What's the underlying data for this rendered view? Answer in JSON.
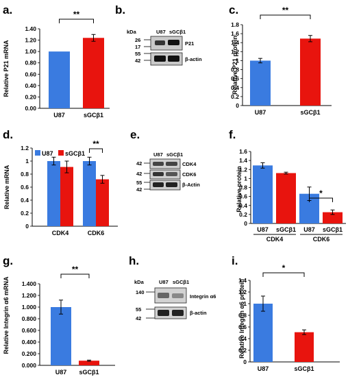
{
  "colors": {
    "blue": "#3a7be0",
    "red": "#e8140e"
  },
  "panels": {
    "a": {
      "label": "a."
    },
    "b": {
      "label": "b."
    },
    "c": {
      "label": "c."
    },
    "d": {
      "label": "d."
    },
    "e": {
      "label": "e."
    },
    "f": {
      "label": "f."
    },
    "g": {
      "label": "g."
    },
    "h": {
      "label": "h."
    },
    "i": {
      "label": "i."
    }
  },
  "chart_data": [
    {
      "id": "a",
      "type": "bar",
      "ylabel": "Relative P21 mRNA",
      "ylim": [
        0,
        1.4
      ],
      "yticks": [
        "0.00",
        "0.20",
        "0.40",
        "0.60",
        "0.80",
        "1.00",
        "1.20",
        "1.40"
      ],
      "categories": [
        "U87",
        "sGCβ1"
      ],
      "values": [
        1.0,
        1.24
      ],
      "errors": [
        0,
        0.06
      ],
      "significance": [
        {
          "label": "**",
          "from": 0,
          "to": 1
        }
      ]
    },
    {
      "id": "c",
      "type": "bar",
      "ylabel": "Relative P21 protein",
      "ylim": [
        0,
        1.8
      ],
      "yticks": [
        "0",
        "0.2",
        "0.4",
        "0.6",
        "0.8",
        "1",
        "1.2",
        "1.4",
        "1.6",
        "1.8"
      ],
      "categories": [
        "U87",
        "sGCβ1"
      ],
      "values": [
        1.0,
        1.49
      ],
      "errors": [
        0.05,
        0.07
      ],
      "significance": [
        {
          "label": "**",
          "from": 0,
          "to": 1
        }
      ]
    },
    {
      "id": "d",
      "type": "bar",
      "ylabel": "Relative mRNA",
      "ylim": [
        0,
        1.2
      ],
      "yticks": [
        "0",
        "0.2",
        "0.4",
        "0.6",
        "0.8",
        "1",
        "1.2"
      ],
      "categories": [
        "CDK4",
        "CDK6"
      ],
      "legend": [
        "U87",
        "sGCβ1"
      ],
      "series": [
        {
          "name": "U87",
          "values": [
            1.0,
            1.0
          ],
          "errors": [
            0.06,
            0.06
          ]
        },
        {
          "name": "sGCβ1",
          "values": [
            0.91,
            0.72
          ],
          "errors": [
            0.09,
            0.06
          ]
        }
      ],
      "significance": [
        {
          "label": "**",
          "category": 1
        }
      ]
    },
    {
      "id": "f",
      "type": "bar",
      "ylabel": "Relative protein",
      "ylim": [
        0,
        1.6
      ],
      "yticks": [
        "0",
        "0.2",
        "0.4",
        "0.6",
        "0.8",
        "1",
        "1.2",
        "1.4",
        "1.6"
      ],
      "groups": [
        "CDK4",
        "CDK6"
      ],
      "categories": [
        "U87",
        "sGCβ1",
        "U87",
        "sGCβ1"
      ],
      "values": [
        1.29,
        1.12,
        0.66,
        0.25
      ],
      "errors": [
        0.06,
        0.02,
        0.15,
        0.05
      ],
      "significance": [
        {
          "label": "*",
          "from": 2,
          "to": 3
        }
      ]
    },
    {
      "id": "g",
      "type": "bar",
      "ylabel": "Relative Integrin α6 mRNA",
      "ylim": [
        0,
        1.4
      ],
      "yticks": [
        "0.000",
        "0.200",
        "0.400",
        "0.600",
        "0.800",
        "1.000",
        "1.200",
        "1.400"
      ],
      "categories": [
        "U87",
        "sGCβ1"
      ],
      "values": [
        1.0,
        0.08
      ],
      "errors": [
        0.12,
        0.01
      ],
      "significance": [
        {
          "label": "**",
          "from": 0,
          "to": 1
        }
      ]
    },
    {
      "id": "i",
      "type": "bar",
      "ylabel": "Relative Integrin α6 protein",
      "ylim": [
        0,
        1.4
      ],
      "yticks": [
        "0",
        "0.2",
        "0.4",
        "0.6",
        "0.8",
        "1",
        "1.2",
        "1.4"
      ],
      "categories": [
        "U87",
        "sGCβ1"
      ],
      "values": [
        1.0,
        0.51
      ],
      "errors": [
        0.13,
        0.04
      ],
      "significance": [
        {
          "label": "*",
          "from": 0,
          "to": 1
        }
      ]
    }
  ],
  "western_blots": [
    {
      "id": "b",
      "kda_label": "kDa",
      "lanes": [
        "U87",
        "sGCβ1"
      ],
      "markers": [
        "26",
        "17",
        "55",
        "42"
      ],
      "bands": [
        "P21",
        "β-actin"
      ]
    },
    {
      "id": "e",
      "lanes": [
        "U87",
        "sGCβ1"
      ],
      "markers": [
        "42",
        "42",
        "55",
        "42"
      ],
      "bands": [
        "CDK4",
        "CDK6",
        "β-Actin"
      ]
    },
    {
      "id": "h",
      "kda_label": "kDa",
      "lanes": [
        "U87",
        "sGCβ1"
      ],
      "markers": [
        "140",
        "55",
        "42"
      ],
      "bands": [
        "Integrin α6",
        "β-actin"
      ]
    }
  ]
}
